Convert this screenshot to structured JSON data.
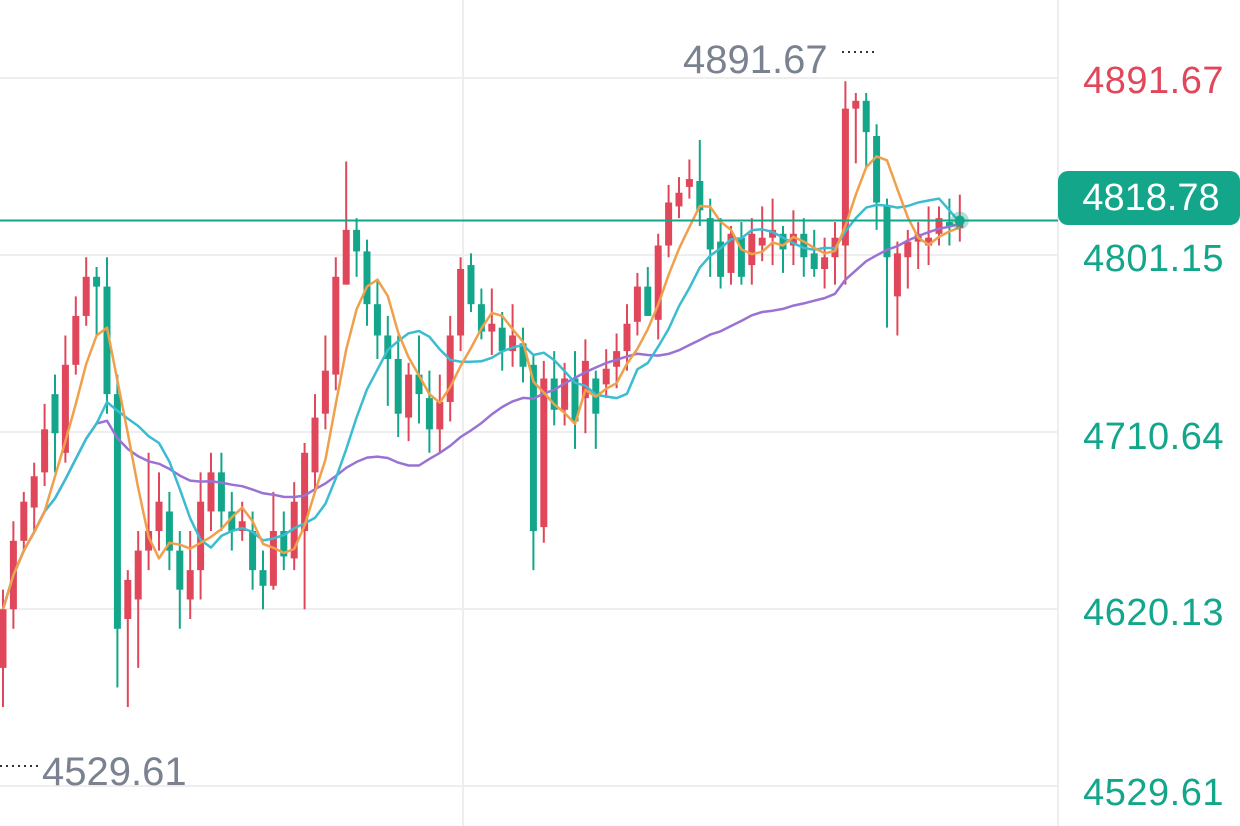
{
  "chart_data": {
    "type": "candlestick",
    "price_axis": {
      "labels": [
        "4891.67",
        "4801.15",
        "4710.64",
        "4620.13",
        "4529.61"
      ],
      "values": [
        4891.67,
        4801.15,
        4710.64,
        4620.13,
        4529.61
      ],
      "colors": [
        "#e0475a",
        "#14a68a",
        "#14a68a",
        "#14a68a",
        "#14a68a"
      ]
    },
    "current_price": {
      "label": "4818.78",
      "value": 4818.78
    },
    "high_marker": {
      "label": "4891.67",
      "value": 4891.67
    },
    "low_marker": {
      "label": "4529.61",
      "value": 4529.61
    },
    "grid": true,
    "colors": {
      "up": "#e0475a",
      "down": "#14a68a",
      "ma_short": "#f0a04b",
      "ma_mid": "#3bbcd0",
      "ma_long": "#9a72d4",
      "current_line": "#14a68a",
      "grid": "#eeeeee",
      "marker_text": "#7a8290"
    },
    "candles": [
      [
        4590,
        4620,
        4570,
        4630
      ],
      [
        4620,
        4655,
        4610,
        4665
      ],
      [
        4655,
        4675,
        4650,
        4680
      ],
      [
        4672,
        4688,
        4660,
        4695
      ],
      [
        4690,
        4712,
        4683,
        4725
      ],
      [
        4730,
        4710,
        4690,
        4740
      ],
      [
        4700,
        4745,
        4695,
        4760
      ],
      [
        4745,
        4770,
        4740,
        4780
      ],
      [
        4770,
        4790,
        4765,
        4800
      ],
      [
        4790,
        4785,
        4760,
        4795
      ],
      [
        4785,
        4730,
        4720,
        4800
      ],
      [
        4730,
        4610,
        4580,
        4740
      ],
      [
        4615,
        4635,
        4570,
        4640
      ],
      [
        4625,
        4650,
        4590,
        4660
      ],
      [
        4650,
        4660,
        4640,
        4700
      ],
      [
        4660,
        4675,
        4650,
        4690
      ],
      [
        4670,
        4650,
        4640,
        4680
      ],
      [
        4650,
        4630,
        4610,
        4660
      ],
      [
        4625,
        4640,
        4615,
        4660
      ],
      [
        4640,
        4675,
        4625,
        4690
      ],
      [
        4670,
        4690,
        4660,
        4700
      ],
      [
        4690,
        4670,
        4660,
        4700
      ],
      [
        4670,
        4660,
        4650,
        4680
      ],
      [
        4660,
        4665,
        4655,
        4675
      ],
      [
        4660,
        4640,
        4630,
        4670
      ],
      [
        4640,
        4632,
        4620,
        4650
      ],
      [
        4632,
        4660,
        4630,
        4680
      ],
      [
        4660,
        4647,
        4640,
        4670
      ],
      [
        4646,
        4675,
        4640,
        4685
      ],
      [
        4660,
        4700,
        4620,
        4705
      ],
      [
        4690,
        4718,
        4680,
        4730
      ],
      [
        4720,
        4742,
        4712,
        4760
      ],
      [
        4740,
        4790,
        4732,
        4800
      ],
      [
        4786,
        4814,
        4786,
        4849
      ],
      [
        4814,
        4803,
        4790,
        4820
      ],
      [
        4803,
        4776,
        4765,
        4809
      ],
      [
        4776,
        4760,
        4748,
        4788
      ],
      [
        4760,
        4748,
        4724,
        4770
      ],
      [
        4748,
        4720,
        4708,
        4760
      ],
      [
        4718,
        4740,
        4706,
        4746
      ],
      [
        4740,
        4730,
        4715,
        4760
      ],
      [
        4728,
        4712,
        4700,
        4742
      ],
      [
        4712,
        4726,
        4700,
        4740
      ],
      [
        4726,
        4760,
        4716,
        4770
      ],
      [
        4760,
        4794,
        4752,
        4800
      ],
      [
        4796,
        4776,
        4772,
        4802
      ],
      [
        4776,
        4762,
        4758,
        4784
      ],
      [
        4762,
        4766,
        4750,
        4784
      ],
      [
        4764,
        4752,
        4742,
        4772
      ],
      [
        4752,
        4760,
        4744,
        4776
      ],
      [
        4756,
        4744,
        4736,
        4764
      ],
      [
        4745,
        4660,
        4640,
        4750
      ],
      [
        4662,
        4738,
        4654,
        4747
      ],
      [
        4738,
        4722,
        4714,
        4752
      ],
      [
        4722,
        4738,
        4714,
        4746
      ],
      [
        4738,
        4716,
        4702,
        4752
      ],
      [
        4728,
        4747,
        4710,
        4758
      ],
      [
        4738,
        4720,
        4702,
        4742
      ],
      [
        4735,
        4743,
        4728,
        4753
      ],
      [
        4744,
        4752,
        4733,
        4761
      ],
      [
        4752,
        4766,
        4742,
        4776
      ],
      [
        4767,
        4785,
        4760,
        4792
      ],
      [
        4785,
        4770,
        4770,
        4795
      ],
      [
        4768,
        4806,
        4758,
        4812
      ],
      [
        4806,
        4828,
        4800,
        4837
      ],
      [
        4826,
        4833,
        4820,
        4841
      ],
      [
        4836,
        4840,
        4830,
        4850
      ],
      [
        4839,
        4824,
        4816,
        4860
      ],
      [
        4820,
        4804,
        4790,
        4830
      ],
      [
        4808,
        4790,
        4784,
        4820
      ],
      [
        4792,
        4812,
        4786,
        4816
      ],
      [
        4810,
        4790,
        4786,
        4818
      ],
      [
        4796,
        4812,
        4786,
        4820
      ],
      [
        4806,
        4810,
        4798,
        4826
      ],
      [
        4810,
        4814,
        4796,
        4830
      ],
      [
        4812,
        4804,
        4792,
        4816
      ],
      [
        4806,
        4812,
        4796,
        4824
      ],
      [
        4812,
        4800,
        4790,
        4820
      ],
      [
        4802,
        4794,
        4790,
        4814
      ],
      [
        4794,
        4800,
        4784,
        4810
      ],
      [
        4800,
        4810,
        4786,
        4818
      ],
      [
        4806,
        4876,
        4786,
        4890
      ],
      [
        4876,
        4880,
        4848,
        4884
      ],
      [
        4880,
        4864,
        4846,
        4884
      ],
      [
        4862,
        4828,
        4814,
        4868
      ],
      [
        4826,
        4800,
        4764,
        4830
      ],
      [
        4780,
        4802,
        4760,
        4808
      ],
      [
        4800,
        4808,
        4784,
        4814
      ],
      [
        4808,
        4812,
        4794,
        4818
      ],
      [
        4806,
        4810,
        4796,
        4826
      ],
      [
        4812,
        4820,
        4806,
        4826
      ],
      [
        4818,
        4816,
        4806,
        4830
      ],
      [
        4815,
        4818,
        4808,
        4832
      ]
    ]
  }
}
